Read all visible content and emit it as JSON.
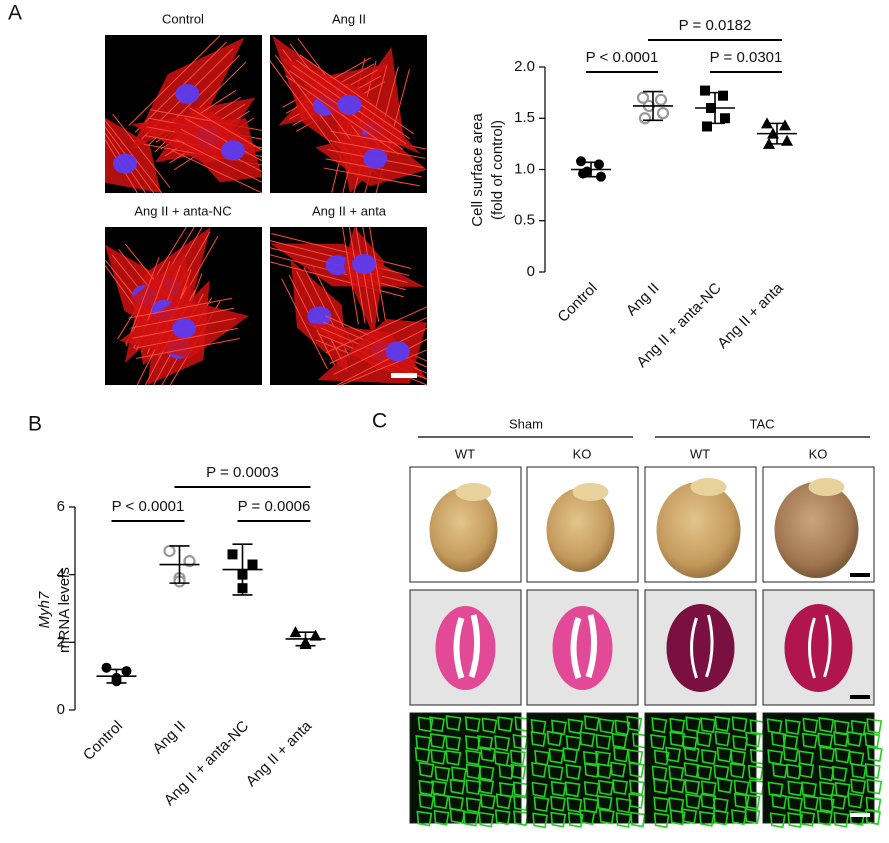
{
  "panel_labels": [
    "A",
    "B",
    "C"
  ],
  "images_a": {
    "labels": [
      "Control",
      "Ang II",
      "Ang II + anta-NC",
      "Ang II + anta"
    ]
  },
  "images_c": {
    "groups": [
      "Sham",
      "TAC"
    ],
    "columns": [
      "WT",
      "KO",
      "WT",
      "KO"
    ]
  },
  "chart_data": [
    {
      "type": "dotplot",
      "ylabel": [
        "Cell surface area",
        "(fold of control)"
      ],
      "categories": [
        "Control",
        "Ang II",
        "Ang II + anta-NC",
        "Ang II + anta"
      ],
      "values": [
        [
          1.08,
          1.05,
          0.98,
          0.93,
          0.96
        ],
        [
          1.7,
          1.68,
          1.62,
          1.55,
          1.5
        ],
        [
          1.77,
          1.72,
          1.6,
          1.5,
          1.42
        ],
        [
          1.45,
          1.43,
          1.35,
          1.28,
          1.25
        ]
      ],
      "means": [
        1.0,
        1.62,
        1.6,
        1.35
      ],
      "sds": [
        0.07,
        0.14,
        0.15,
        0.1
      ],
      "markers": [
        "circle",
        "open-circle",
        "square",
        "triangle"
      ],
      "colors": [
        "#000000",
        "#999999",
        "#000000",
        "#000000"
      ],
      "ylim": [
        0,
        2
      ],
      "yticks": [
        0,
        0.5,
        {
          "value": 1,
          "label": "1.0"
        },
        1.5,
        {
          "value": 2,
          "label": "2.0"
        }
      ],
      "annotations": [
        "P < 0.0001",
        "P = 0.0301",
        "P = 0.0182"
      ]
    },
    {
      "type": "dotplot",
      "ylabel": [
        "Myh7",
        "mRNA levels"
      ],
      "categories": [
        "Control",
        "Ang II",
        "Ang II + anta-NC",
        "Ang II + anta"
      ],
      "values": [
        [
          1.25,
          1.15,
          0.95,
          0.85
        ],
        [
          4.7,
          4.4,
          3.9,
          3.8
        ],
        [
          4.6,
          4.3,
          4.0,
          3.6
        ],
        [
          2.3,
          2.2,
          2.0,
          1.95
        ]
      ],
      "means": [
        1.0,
        4.3,
        4.15,
        2.1
      ],
      "sds": [
        0.2,
        0.55,
        0.75,
        0.2
      ],
      "markers": [
        "circle",
        "open-circle",
        "square",
        "triangle"
      ],
      "colors": [
        "#000000",
        "#999999",
        "#000000",
        "#000000"
      ],
      "ylim": [
        0,
        6
      ],
      "yticks": [
        0,
        2,
        4,
        6
      ],
      "annotations": [
        "P < 0.0001",
        "P = 0.0006",
        "P = 0.0003"
      ]
    }
  ]
}
